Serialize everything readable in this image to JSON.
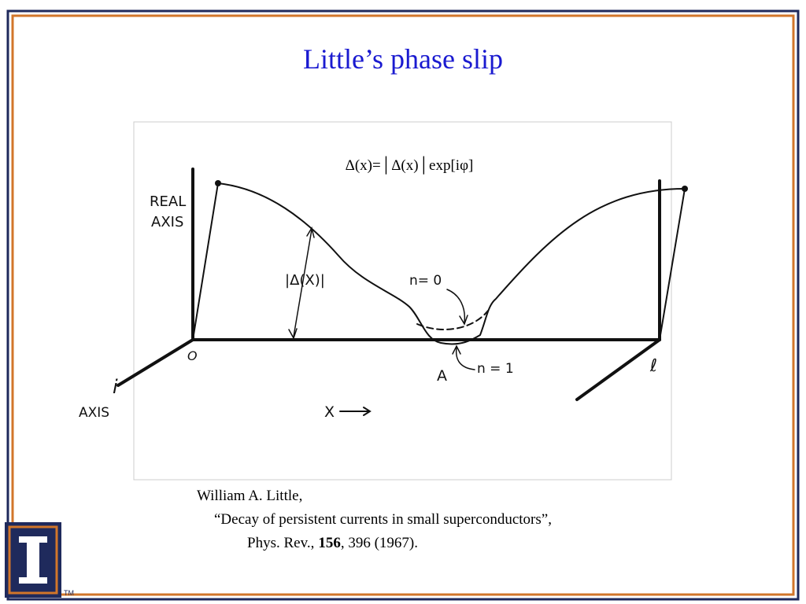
{
  "title": "Little’s  phase slip",
  "figure": {
    "equation": "Δ(x)=│Δ(x)│exp[iφ]",
    "labels": {
      "real_axis_1": "REAL",
      "real_axis_2": "AXIS",
      "amplitude": "|Δ(X)|",
      "n0": "n= 0",
      "n1": "n = 1",
      "point_a": "A",
      "origin": "O",
      "length": "ℓ",
      "i_axis_1": "i",
      "i_axis_2": "AXIS",
      "x_axis": "X"
    }
  },
  "citation": {
    "author": "William A. Little,",
    "paper_title": "“Decay of persistent currents in small superconductors”,",
    "journal": "Phys. Rev.,",
    "volume": "156",
    "pages": ", 396 (1967)."
  },
  "logo": {
    "trademark": "TM"
  }
}
